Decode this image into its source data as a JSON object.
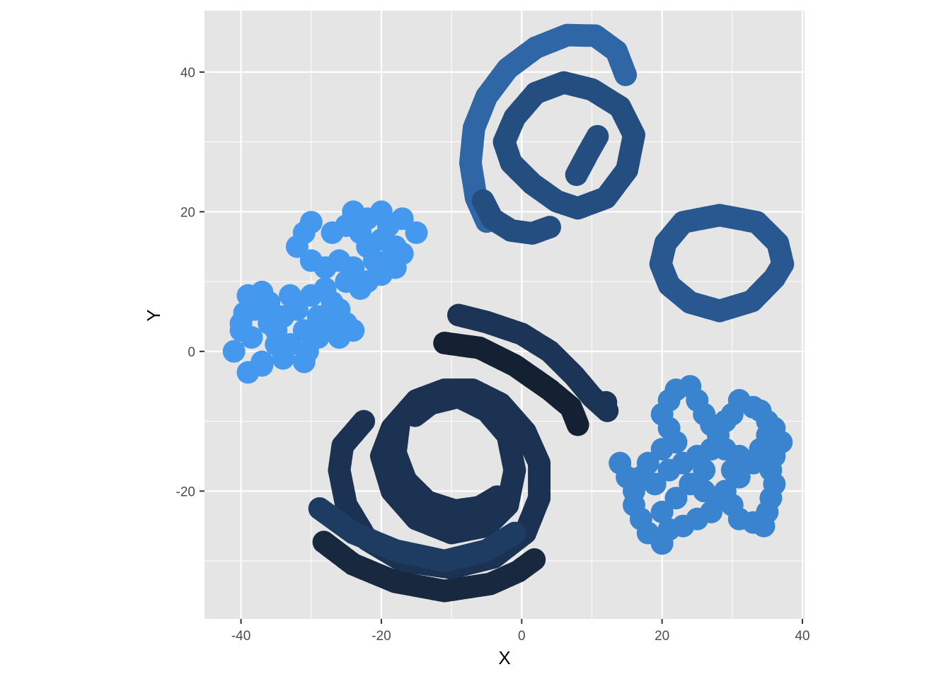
{
  "chart_data": {
    "type": "scatter",
    "title": "",
    "xlabel": "X",
    "ylabel": "Y",
    "xlim": [
      -45.2,
      40.3
    ],
    "ylim": [
      -38.3,
      48.8
    ],
    "x_ticks": [
      -40,
      -20,
      0,
      20,
      40
    ],
    "x_tick_labels": [
      "-40",
      "-20",
      "0",
      "20",
      "40"
    ],
    "y_ticks": [
      -20,
      0,
      20,
      40
    ],
    "y_tick_labels": [
      "-20",
      "0",
      "20",
      "40"
    ],
    "grid": true,
    "legend": "none",
    "colors": {
      "panel_background": "#e5e5e5",
      "grid_line": "#ffffff",
      "darkest_point": "#132132",
      "lightest_point": "#4499ee"
    },
    "series": [
      {
        "shape": "open arc",
        "color": "#2f66a6",
        "points": [
          [
            -5,
            18.6
          ],
          [
            -6.5,
            22
          ],
          [
            -7.3,
            27
          ],
          [
            -6.8,
            32
          ],
          [
            -5,
            36.5
          ],
          [
            -2,
            40.5
          ],
          [
            2,
            43.5
          ],
          [
            6.5,
            45.3
          ],
          [
            10.5,
            45.2
          ],
          [
            13.5,
            43
          ],
          [
            14.8,
            39.6
          ]
        ]
      },
      {
        "shape": "spiral",
        "color": "#244e80",
        "points": [
          [
            4,
            17.8
          ],
          [
            1.5,
            16.9
          ],
          [
            -1.5,
            17.3
          ],
          [
            -4.2,
            19
          ],
          [
            -5.5,
            21.6
          ]
        ]
      },
      {
        "shape": "spiral",
        "color": "#244e80",
        "points": [
          [
            7.8,
            25.3
          ],
          [
            9.5,
            28.5
          ],
          [
            10.8,
            30.8
          ]
        ]
      },
      {
        "shape": "closed loop",
        "color": "#244e80",
        "points": [
          [
            8,
            20.5
          ],
          [
            12,
            22
          ],
          [
            15,
            26
          ],
          [
            16,
            31
          ],
          [
            14,
            35
          ],
          [
            10,
            37.5
          ],
          [
            6,
            38.5
          ],
          [
            2,
            37
          ],
          [
            -1,
            33.5
          ],
          [
            -2.5,
            30
          ],
          [
            -1.5,
            27
          ],
          [
            1.5,
            24
          ],
          [
            5,
            21.5
          ],
          [
            8,
            20.5
          ]
        ]
      },
      {
        "shape": "ring",
        "color": "#295891",
        "points": [
          [
            28.2,
            5.8
          ],
          [
            32.8,
            7.2
          ],
          [
            36,
            10.5
          ],
          [
            37.2,
            12.5
          ],
          [
            36.5,
            15.5
          ],
          [
            33.5,
            18.5
          ],
          [
            28.2,
            19.5
          ],
          [
            23,
            18.5
          ],
          [
            20.5,
            15.5
          ],
          [
            19.8,
            12.5
          ],
          [
            21,
            9.5
          ],
          [
            24,
            7
          ],
          [
            28.2,
            5.8
          ]
        ]
      },
      {
        "shape": "curve",
        "color": "#1c3557",
        "points": [
          [
            -9,
            5.2
          ],
          [
            -5,
            4.2
          ],
          [
            0,
            2.5
          ],
          [
            4,
            0
          ],
          [
            7.5,
            -3.5
          ],
          [
            10,
            -6.5
          ],
          [
            12.2,
            -8.5
          ]
        ]
      },
      {
        "shape": "curve",
        "color": "#132132",
        "points": [
          [
            -11,
            1.2
          ],
          [
            -6,
            0.5
          ],
          [
            -1,
            -2
          ],
          [
            4,
            -5.5
          ],
          [
            7,
            -8
          ],
          [
            8,
            -10.5
          ]
        ]
      },
      {
        "shape": "curve",
        "color": "#1c3557",
        "points": [
          [
            12,
            -7.3
          ]
        ]
      },
      {
        "shape": "spiral",
        "color": "#1b3252",
        "points": [
          [
            -15.2,
            -9.2
          ],
          [
            -13,
            -7.5
          ],
          [
            -9,
            -6.5
          ],
          [
            -5,
            -8.5
          ],
          [
            -2,
            -12
          ],
          [
            -1,
            -17
          ],
          [
            -2,
            -22
          ],
          [
            -5,
            -25
          ],
          [
            -10,
            -26
          ],
          [
            -15,
            -24
          ],
          [
            -18.5,
            -20
          ],
          [
            -20,
            -15
          ],
          [
            -18.5,
            -11
          ],
          [
            -15,
            -7
          ],
          [
            -11,
            -5.5
          ],
          [
            -7,
            -5.5
          ],
          [
            -3,
            -7.5
          ],
          [
            0.5,
            -11.5
          ],
          [
            2.5,
            -16
          ],
          [
            2.5,
            -21
          ],
          [
            0.5,
            -26
          ],
          [
            -4,
            -29.5
          ],
          [
            -10,
            -31
          ],
          [
            -17,
            -30
          ],
          [
            -22,
            -27
          ],
          [
            -25,
            -22
          ],
          [
            -26,
            -17
          ],
          [
            -25.5,
            -13.5
          ],
          [
            -22.5,
            -10
          ]
        ]
      },
      {
        "shape": "curve",
        "color": "#1b3252",
        "points": [
          [
            -3.5,
            -20.8
          ],
          [
            -6,
            -22.3
          ],
          [
            -9.5,
            -22.8
          ],
          [
            -13.5,
            -21.5
          ],
          [
            -16.5,
            -18.5
          ],
          [
            -18,
            -14.5
          ],
          [
            -17.5,
            -10.5
          ]
        ]
      },
      {
        "shape": "arc",
        "color": "#1e3c62",
        "points": [
          [
            -28.8,
            -22.5
          ],
          [
            -24,
            -26
          ],
          [
            -18,
            -28.5
          ],
          [
            -11,
            -30
          ],
          [
            -5,
            -28.5
          ],
          [
            -1,
            -26
          ]
        ]
      },
      {
        "shape": "arc",
        "color": "#17283f",
        "points": [
          [
            -28.2,
            -27.3
          ],
          [
            -24,
            -30.5
          ],
          [
            -18,
            -33
          ],
          [
            -11,
            -34.3
          ],
          [
            -4.5,
            -33.3
          ],
          [
            -0.5,
            -31.5
          ],
          [
            1.8,
            -29.8
          ]
        ]
      },
      {
        "shape": "cluster",
        "color": "#4499ee",
        "points": [
          [
            -41,
            0
          ],
          [
            -40,
            3
          ],
          [
            -39.5,
            5.5
          ],
          [
            -39,
            8
          ],
          [
            -37,
            8.5
          ],
          [
            -38.5,
            2
          ],
          [
            -37,
            -1.5
          ],
          [
            -35,
            1
          ],
          [
            -34,
            5
          ],
          [
            -33,
            8
          ],
          [
            -32,
            6
          ],
          [
            -31,
            3
          ],
          [
            -30.5,
            0
          ],
          [
            -29,
            2
          ],
          [
            -28,
            5
          ],
          [
            -27,
            4
          ],
          [
            -26,
            2
          ],
          [
            -25,
            4
          ],
          [
            -24,
            3
          ],
          [
            -30,
            8
          ],
          [
            -28,
            9
          ],
          [
            -25,
            10
          ],
          [
            -24,
            12
          ],
          [
            -26,
            13
          ],
          [
            -28,
            12
          ],
          [
            -30,
            13
          ],
          [
            -32,
            15
          ],
          [
            -31,
            17
          ],
          [
            -30,
            18.5
          ],
          [
            -27,
            17
          ],
          [
            -25,
            18
          ],
          [
            -24,
            20
          ],
          [
            -22,
            19
          ],
          [
            -20,
            20
          ],
          [
            -19,
            18
          ],
          [
            -20,
            16
          ],
          [
            -18,
            15
          ],
          [
            -17,
            14
          ],
          [
            -18,
            12
          ],
          [
            -20,
            11
          ],
          [
            -22,
            10
          ],
          [
            -23,
            9
          ],
          [
            -15,
            17
          ],
          [
            -17,
            19
          ],
          [
            -36,
            4
          ],
          [
            -39,
            -3
          ],
          [
            -37,
            -2
          ],
          [
            -35,
            3
          ],
          [
            -33,
            1
          ],
          [
            -34,
            -1
          ],
          [
            -31,
            -1.5
          ],
          [
            -38,
            6
          ],
          [
            -40,
            4
          ],
          [
            -36,
            7
          ],
          [
            -29,
            5
          ],
          [
            -27,
            7
          ],
          [
            -26,
            6
          ],
          [
            -22,
            15
          ],
          [
            -23,
            17
          ],
          [
            -21,
            13
          ],
          [
            -19,
            13
          ]
        ]
      },
      {
        "shape": "cluster",
        "color": "#3a84cf",
        "points": [
          [
            14,
            -16
          ],
          [
            15,
            -18
          ],
          [
            16,
            -20
          ],
          [
            16,
            -22
          ],
          [
            17,
            -24
          ],
          [
            18,
            -26
          ],
          [
            20,
            -27.5
          ],
          [
            21,
            -25.5
          ],
          [
            23,
            -25
          ],
          [
            25,
            -24
          ],
          [
            27,
            -23
          ],
          [
            28,
            -21
          ],
          [
            30,
            -22
          ],
          [
            31,
            -24
          ],
          [
            33,
            -24.5
          ],
          [
            34.5,
            -25
          ],
          [
            35,
            -23
          ],
          [
            35.5,
            -21
          ],
          [
            36,
            -19
          ],
          [
            35.5,
            -17
          ],
          [
            36,
            -15
          ],
          [
            37,
            -13
          ],
          [
            36,
            -11
          ],
          [
            35,
            -10
          ],
          [
            34,
            -8.5
          ],
          [
            33,
            -8
          ],
          [
            31,
            -7
          ],
          [
            30,
            -9
          ],
          [
            29,
            -10
          ],
          [
            27,
            -10.5
          ],
          [
            26,
            -9
          ],
          [
            25,
            -7
          ],
          [
            24,
            -5
          ],
          [
            22,
            -5.5
          ],
          [
            21,
            -7
          ],
          [
            20,
            -9
          ],
          [
            21,
            -11
          ],
          [
            22,
            -13
          ],
          [
            20,
            -14
          ],
          [
            18,
            -16
          ],
          [
            17,
            -18
          ],
          [
            19,
            -19
          ],
          [
            21,
            -17
          ],
          [
            23,
            -16
          ],
          [
            25,
            -15
          ],
          [
            27,
            -14
          ],
          [
            29,
            -14
          ],
          [
            31,
            -15
          ],
          [
            33,
            -16
          ],
          [
            31,
            -18
          ],
          [
            29,
            -20
          ],
          [
            26,
            -20
          ],
          [
            24,
            -19
          ],
          [
            22,
            -21
          ],
          [
            20,
            -23
          ],
          [
            30,
            -17
          ],
          [
            34,
            -14
          ],
          [
            35,
            -12
          ],
          [
            28,
            -12
          ],
          [
            26,
            -17
          ]
        ]
      }
    ]
  }
}
